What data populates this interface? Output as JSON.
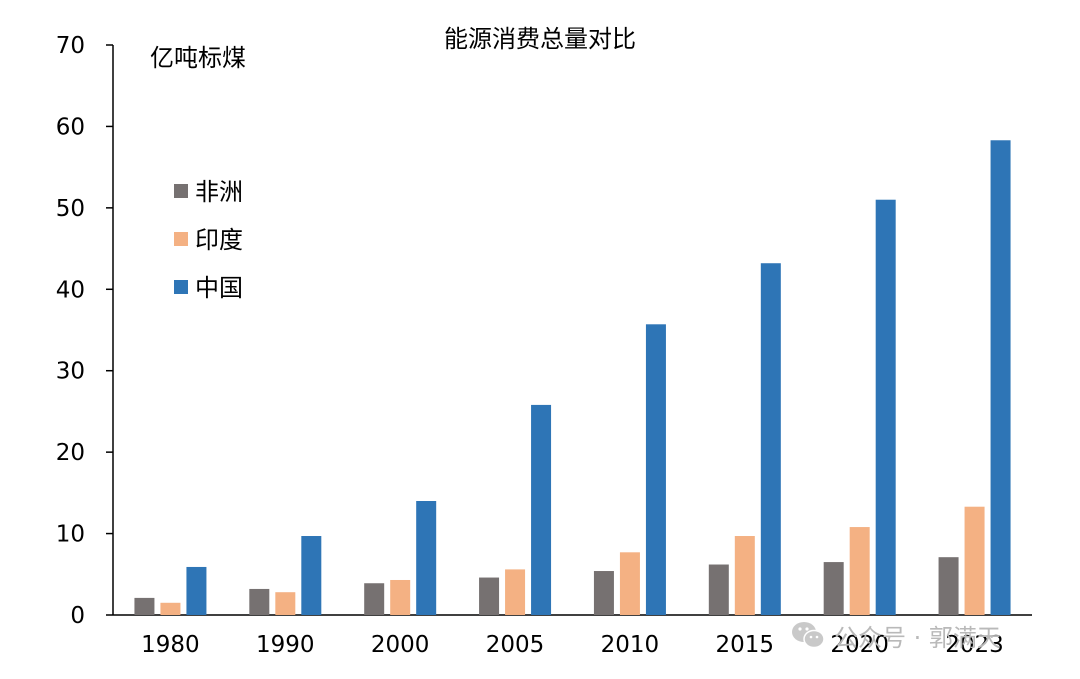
{
  "colors": {
    "africa": "#767171",
    "india": "#F4B183",
    "china": "#2E75B6",
    "axis": "#000000",
    "watermark": "#B9B9B9"
  },
  "watermark": {
    "icon": "wechat-icon",
    "text": "公众号 · 郭满天"
  },
  "chart_data": {
    "type": "bar",
    "title": "能源消费总量对比",
    "ylabel": "亿吨标煤",
    "xlabel": "",
    "ylim": [
      0,
      70
    ],
    "yticks": [
      0,
      10,
      20,
      30,
      40,
      50,
      60,
      70
    ],
    "categories": [
      "1980",
      "1990",
      "2000",
      "2005",
      "2010",
      "2015",
      "2020",
      "2023"
    ],
    "grid": false,
    "legend_position": "left",
    "series": [
      {
        "name": "非洲",
        "color": "#767171",
        "values": [
          2.1,
          3.2,
          3.9,
          4.6,
          5.4,
          6.2,
          6.5,
          7.1
        ]
      },
      {
        "name": "印度",
        "color": "#F4B183",
        "values": [
          1.5,
          2.8,
          4.3,
          5.6,
          7.7,
          9.7,
          10.8,
          13.3
        ]
      },
      {
        "name": "中国",
        "color": "#2E75B6",
        "values": [
          5.9,
          9.7,
          14.0,
          25.8,
          35.7,
          43.2,
          51.0,
          58.3
        ]
      }
    ]
  }
}
